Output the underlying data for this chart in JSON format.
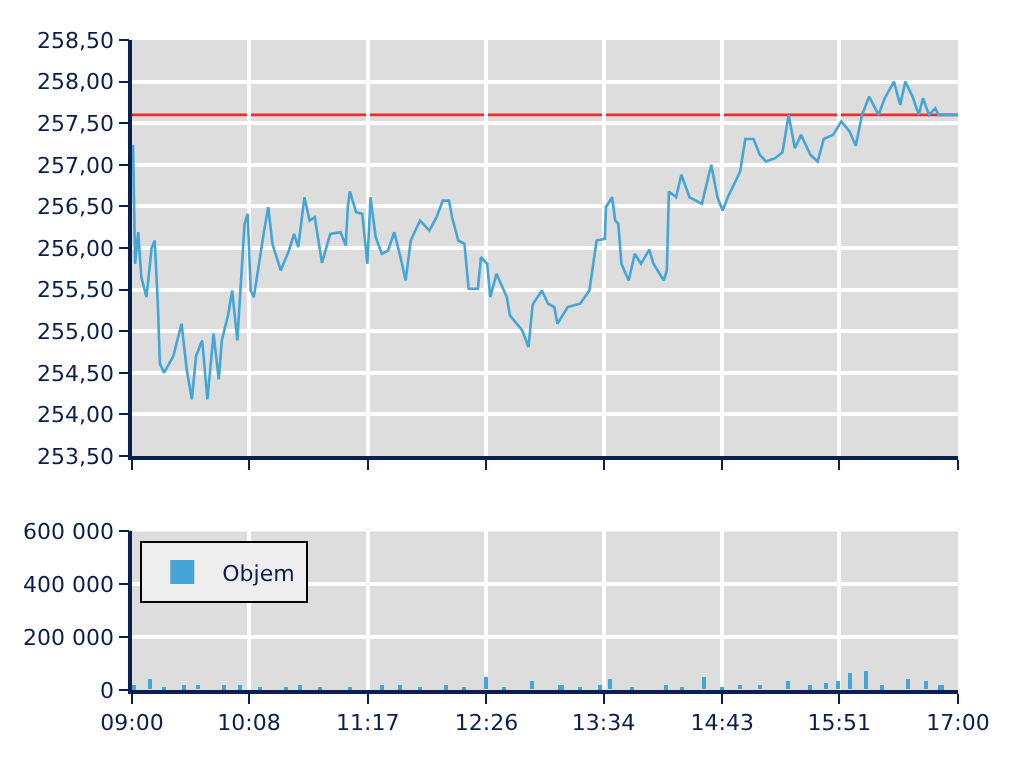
{
  "chart_data": [
    {
      "type": "line",
      "tick_labels": "y",
      "grid": true,
      "legend": false,
      "x": [
        9.01,
        9.03,
        9.06,
        9.09,
        9.14,
        9.19,
        9.22,
        9.25,
        9.27,
        9.31,
        9.4,
        9.48,
        9.53,
        9.58,
        9.62,
        9.68,
        9.73,
        9.79,
        9.84,
        9.87,
        9.93,
        9.97,
        10.02,
        10.09,
        10.12,
        10.15,
        10.18,
        10.24,
        10.28,
        10.32,
        10.36,
        10.44,
        10.52,
        10.57,
        10.61,
        10.67,
        10.72,
        10.77,
        10.84,
        10.92,
        11.02,
        11.07,
        11.09,
        11.11,
        11.17,
        11.23,
        11.28,
        11.31,
        11.36,
        11.42,
        11.48,
        11.54,
        11.6,
        11.65,
        11.7,
        11.79,
        11.88,
        11.95,
        12.01,
        12.07,
        12.1,
        12.16,
        12.22,
        12.26,
        12.35,
        12.38,
        12.44,
        12.47,
        12.53,
        12.63,
        12.66,
        12.78,
        12.84,
        12.88,
        12.97,
        13.03,
        13.09,
        13.12,
        13.22,
        13.34,
        13.43,
        13.5,
        13.58,
        13.59,
        13.65,
        13.68,
        13.71,
        13.74,
        13.81,
        13.87,
        13.93,
        14.01,
        14.05,
        14.15,
        14.18,
        14.2,
        14.27,
        14.32,
        14.4,
        14.52,
        14.61,
        14.67,
        14.72,
        14.77,
        14.86,
        14.89,
        14.94,
        15.02,
        15.08,
        15.14,
        15.23,
        15.3,
        15.36,
        15.42,
        15.48,
        15.57,
        15.64,
        15.7,
        15.79,
        15.87,
        15.95,
        16.01,
        16.07,
        16.14,
        16.23,
        16.29,
        16.38,
        16.44,
        16.49,
        16.56,
        16.62,
        16.66,
        16.72,
        16.78,
        16.81,
        17.0
      ],
      "series": [
        {
          "color": "#45a5d6",
          "values": [
            257.24,
            255.81,
            256.19,
            255.65,
            255.41,
            256.0,
            256.09,
            255.33,
            254.61,
            254.5,
            254.7,
            255.09,
            254.54,
            254.18,
            254.7,
            254.89,
            254.18,
            254.97,
            254.42,
            254.89,
            255.19,
            255.49,
            254.89,
            256.29,
            256.41,
            255.49,
            255.41,
            255.89,
            256.21,
            256.49,
            256.05,
            255.73,
            255.97,
            256.17,
            256.01,
            256.61,
            256.33,
            256.37,
            255.82,
            256.17,
            256.19,
            256.03,
            256.49,
            256.68,
            256.43,
            256.41,
            255.81,
            256.61,
            256.13,
            255.93,
            255.97,
            256.19,
            255.89,
            255.61,
            256.09,
            256.33,
            256.21,
            256.37,
            256.57,
            256.57,
            256.37,
            256.09,
            256.05,
            255.51,
            255.51,
            255.89,
            255.81,
            255.41,
            255.69,
            255.41,
            255.19,
            255.01,
            254.81,
            255.32,
            255.49,
            255.33,
            255.29,
            255.09,
            255.29,
            255.33,
            255.49,
            256.09,
            256.11,
            256.49,
            256.61,
            256.33,
            256.29,
            255.81,
            255.61,
            255.93,
            255.81,
            255.98,
            255.81,
            255.61,
            255.73,
            256.68,
            256.61,
            256.88,
            256.61,
            256.53,
            257.0,
            256.61,
            256.45,
            256.61,
            256.84,
            256.92,
            257.31,
            257.31,
            257.12,
            257.04,
            257.08,
            257.15,
            257.6,
            257.2,
            257.36,
            257.12,
            257.04,
            257.31,
            257.36,
            257.52,
            257.4,
            257.23,
            257.6,
            257.82,
            257.6,
            257.8,
            258.0,
            257.72,
            258.0,
            257.82,
            257.6,
            257.8,
            257.6,
            257.68,
            257.6,
            257.6
          ]
        }
      ],
      "ylim": [
        253.5,
        258.5
      ],
      "yticks": [
        {
          "value": 253.5,
          "label": "253,50"
        },
        {
          "value": 254.0,
          "label": "254,00"
        },
        {
          "value": 254.5,
          "label": "254,50"
        },
        {
          "value": 255.0,
          "label": "255,00"
        },
        {
          "value": 255.5,
          "label": "255,50"
        },
        {
          "value": 256.0,
          "label": "256,00"
        },
        {
          "value": 256.5,
          "label": "256,50"
        },
        {
          "value": 257.0,
          "label": "257,00"
        },
        {
          "value": 257.5,
          "label": "257,50"
        },
        {
          "value": 258.0,
          "label": "258,00"
        },
        {
          "value": 258.5,
          "label": "258,50"
        }
      ],
      "xlim": [
        9,
        17
      ],
      "xticks": [
        {
          "value": 9,
          "label": null
        },
        {
          "value": 10.1333,
          "label": null
        },
        {
          "value": 11.2833,
          "label": null
        },
        {
          "value": 12.4333,
          "label": null
        },
        {
          "value": 13.5667,
          "label": null
        },
        {
          "value": 14.7167,
          "label": null
        },
        {
          "value": 15.85,
          "label": null
        },
        {
          "value": 17,
          "label": null
        }
      ],
      "ref_lines": [
        {
          "axis": "y",
          "value": 257.6,
          "color": "#e8312b"
        }
      ]
    },
    {
      "type": "bar",
      "grid": true,
      "legend": "top left",
      "x": [
        9.03,
        9.17,
        9.31,
        9.5,
        9.65,
        9.9,
        10.05,
        10.24,
        10.49,
        10.64,
        10.83,
        11.11,
        11.42,
        11.6,
        11.79,
        12.04,
        12.22,
        12.44,
        12.6,
        12.88,
        13.16,
        13.34,
        13.53,
        13.64,
        13.84,
        14.18,
        14.33,
        14.55,
        14.71,
        14.89,
        15.08,
        15.36,
        15.57,
        15.73,
        15.85,
        15.95,
        16.11,
        16.26,
        16.52,
        16.69,
        16.84
      ],
      "series": [
        {
          "name": "Objem",
          "color": "#45a5d6",
          "values": [
            15000,
            42000,
            10000,
            15000,
            18000,
            15000,
            15000,
            8000,
            10000,
            15000,
            12000,
            10000,
            15000,
            15000,
            12000,
            15000,
            10000,
            47000,
            10000,
            35000,
            15000,
            12000,
            15000,
            40000,
            10000,
            15000,
            10000,
            50000,
            12000,
            17000,
            17000,
            32000,
            15000,
            22000,
            35000,
            62000,
            70000,
            15000,
            40000,
            35000,
            15000
          ]
        }
      ],
      "ylim": [
        0,
        600000
      ],
      "yticks": [
        0,
        {
          "value": 200000,
          "label": "200 000"
        },
        {
          "value": 400000,
          "label": "400 000"
        },
        {
          "value": 600000,
          "label": "600 000"
        }
      ],
      "xlim": [
        9,
        17
      ],
      "xticks": [
        {
          "value": 9,
          "label": "09:00"
        },
        {
          "value": 10.1333,
          "label": "10:08"
        },
        {
          "value": 11.2833,
          "label": "11:17"
        },
        {
          "value": 12.4333,
          "label": "12:26"
        },
        {
          "value": 13.5667,
          "label": "13:34"
        },
        {
          "value": 14.7167,
          "label": "14:43"
        },
        {
          "value": 15.85,
          "label": "15:51"
        },
        {
          "value": 17,
          "label": "17:00"
        }
      ]
    }
  ]
}
